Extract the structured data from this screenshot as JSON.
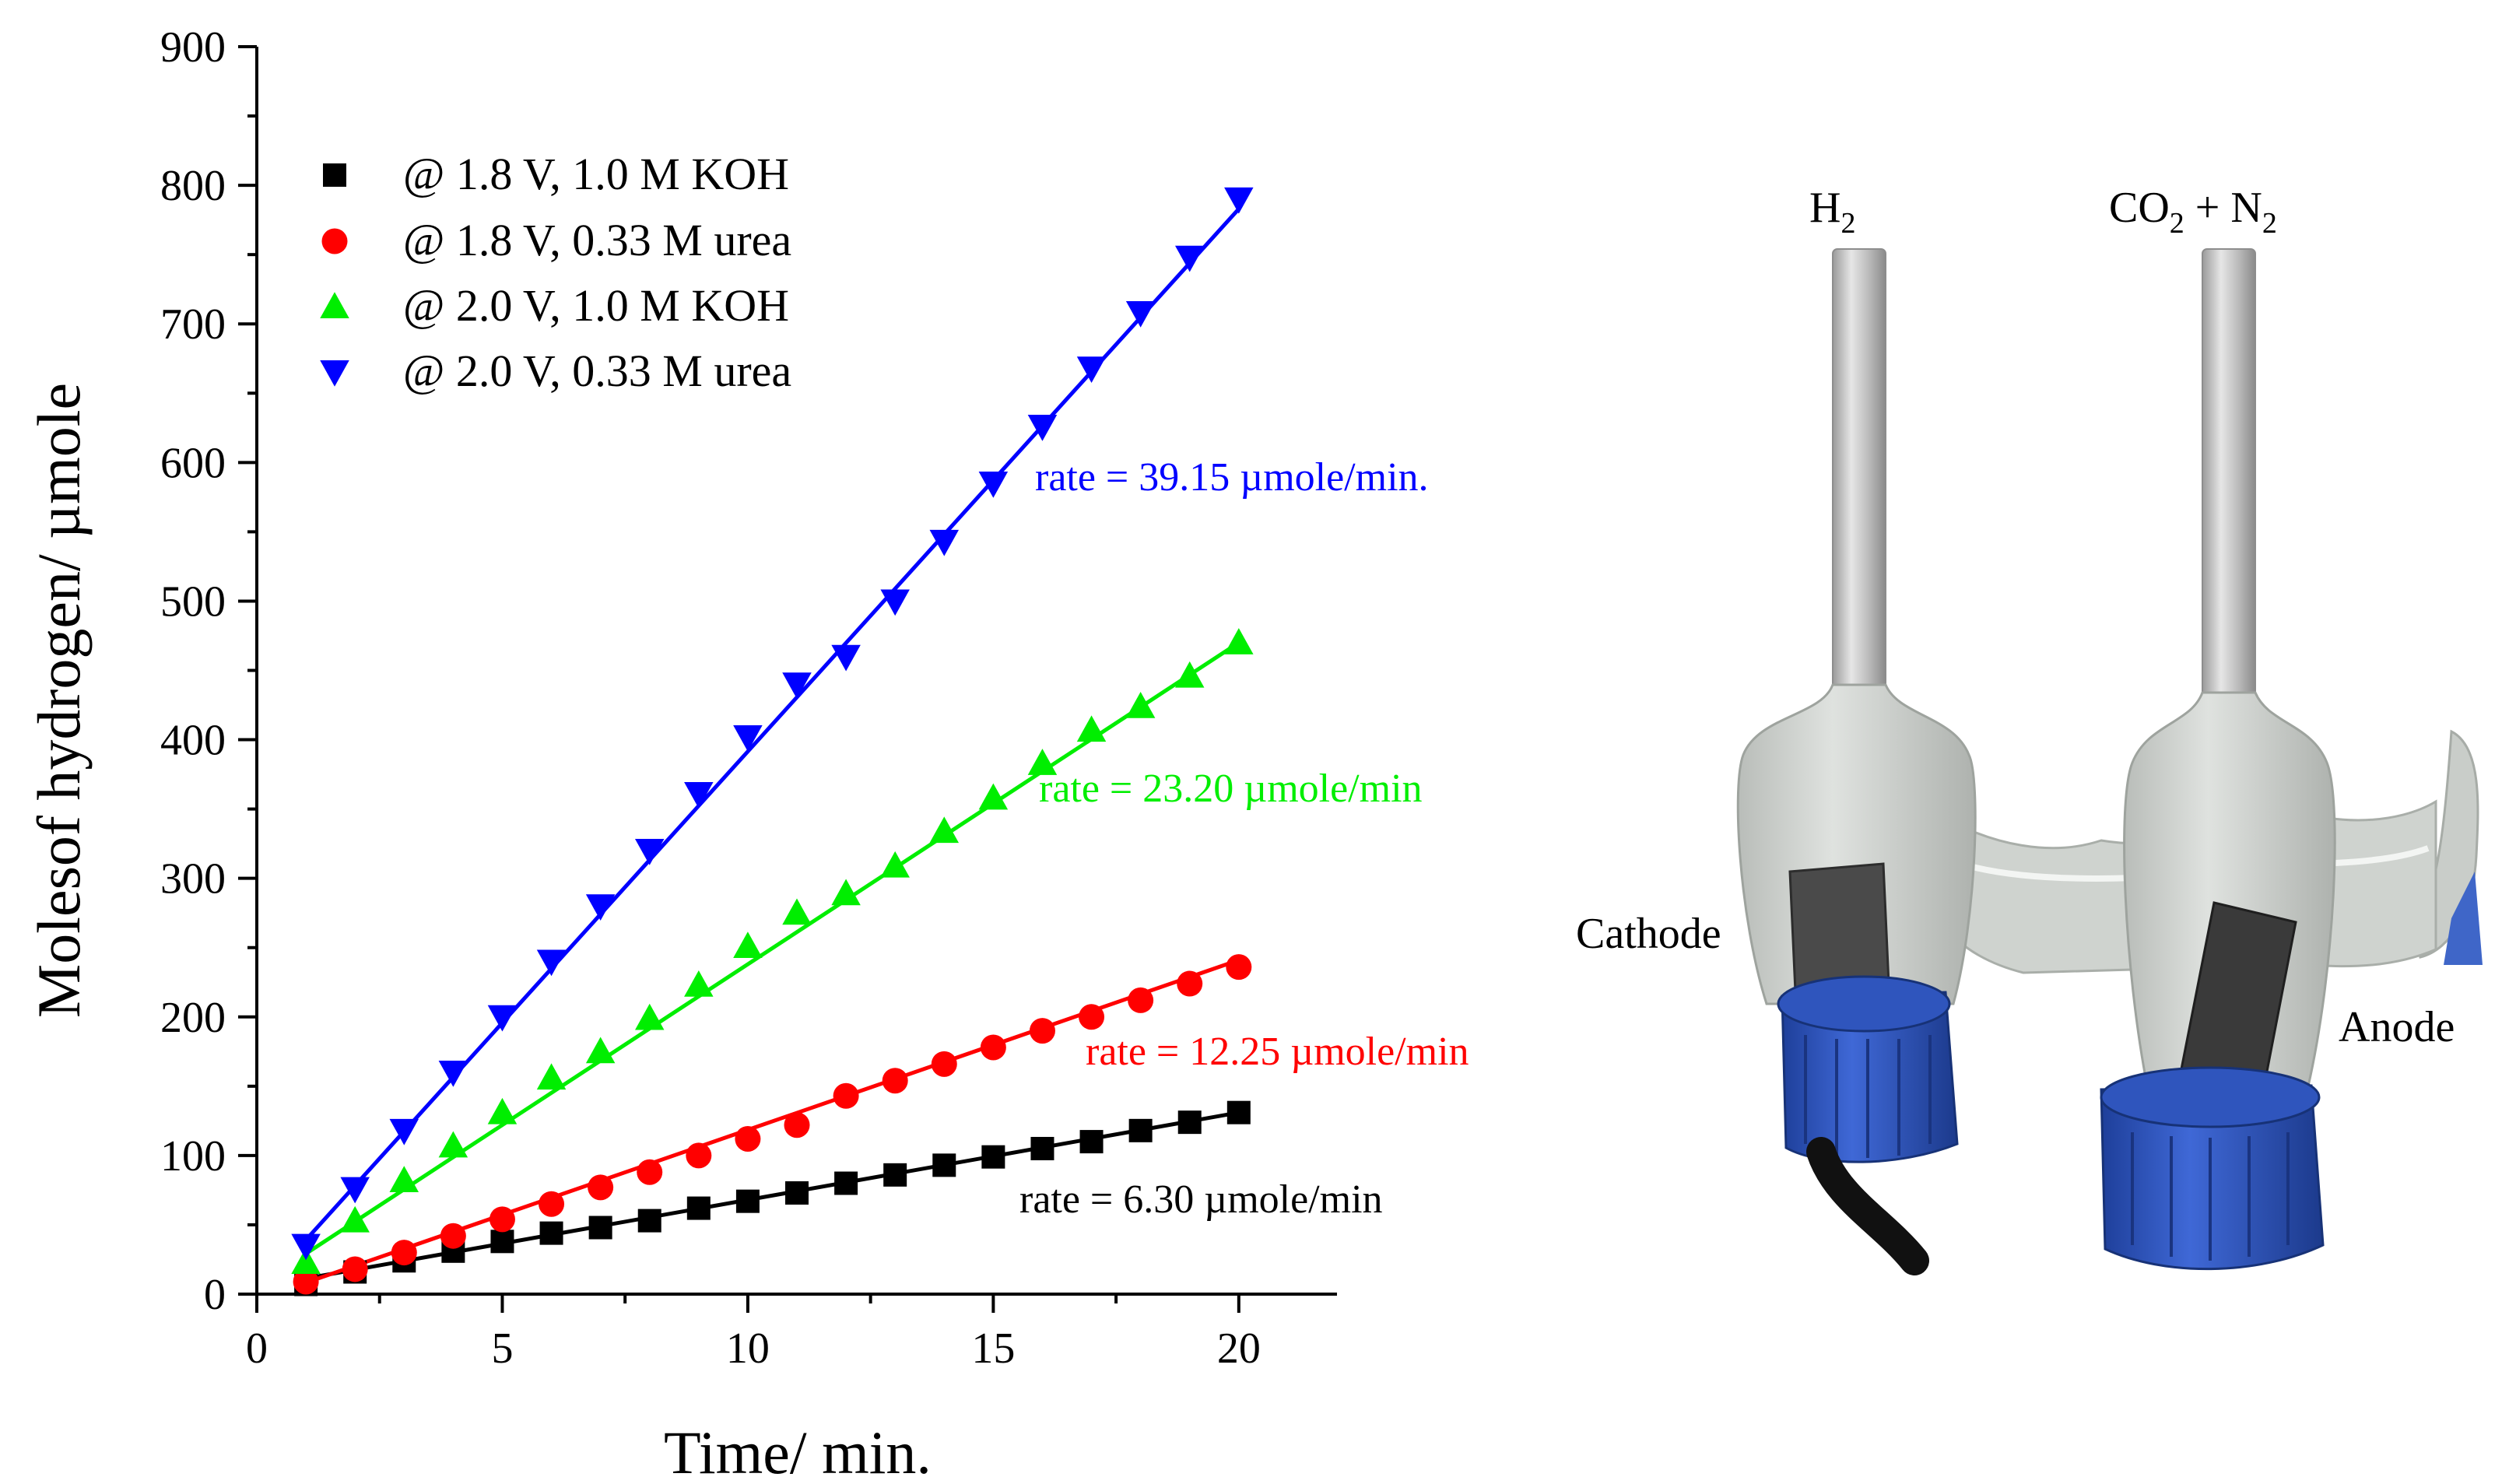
{
  "chart_data": {
    "type": "scatter",
    "xlabel": "Time/ min.",
    "ylabel": "Molesof hydrogen/ µmole",
    "xlim": [
      0,
      22
    ],
    "ylim": [
      0,
      900
    ],
    "xticks": [
      "0",
      "5",
      "10",
      "15",
      "20"
    ],
    "yticks": [
      "0",
      "100",
      "200",
      "300",
      "400",
      "500",
      "600",
      "700",
      "800",
      "900"
    ],
    "legend_position": "top-left",
    "x": [
      1,
      2,
      3,
      4,
      5,
      6,
      7,
      8,
      9,
      10,
      11,
      12,
      13,
      14,
      15,
      16,
      17,
      18,
      19,
      20
    ],
    "series": [
      {
        "name": "@ 1.8 V, 1.0 M KOH",
        "color": "#000000",
        "marker": "square",
        "values": [
          7,
          16,
          24,
          31,
          38,
          44,
          48,
          53,
          62,
          67,
          73,
          80,
          86,
          93,
          99,
          105,
          110,
          118,
          124,
          131
        ],
        "fit_slope": 6.3,
        "fit_intercept": 5,
        "rate_label": "rate = 6.30 µmole/min"
      },
      {
        "name": "@ 1.8 V, 0.33 M urea",
        "color": "#ff0000",
        "marker": "circle",
        "values": [
          9,
          18,
          30,
          42,
          54,
          65,
          77,
          88,
          100,
          112,
          122,
          143,
          154,
          166,
          178,
          190,
          200,
          212,
          224,
          236
        ],
        "fit_slope": 12.25,
        "fit_intercept": -4,
        "rate_label": "rate = 12.25 µmole/min"
      },
      {
        "name": "@ 2.0 V, 1.0 M KOH",
        "color": "#00ee00",
        "marker": "triangle-up",
        "values": [
          23,
          53,
          82,
          107,
          131,
          156,
          175,
          199,
          223,
          251,
          275,
          289,
          309,
          334,
          358,
          383,
          407,
          424,
          446,
          470
        ],
        "fit_slope": 23.2,
        "fit_intercept": 6,
        "rate_label": "rate = 23.20 µmole/min"
      },
      {
        "name": "@ 2.0 V, 0.33 M urea",
        "color": "#0000ff",
        "marker": "triangle-down",
        "values": [
          35,
          76,
          118,
          160,
          200,
          240,
          280,
          320,
          361,
          402,
          440,
          460,
          500,
          543,
          585,
          626,
          668,
          708,
          748,
          790
        ],
        "fit_slope": 39.15,
        "fit_intercept": 0,
        "rate_label": "rate = 39.15 µmole/min."
      }
    ]
  },
  "photo": {
    "label_h2_main": "H",
    "label_h2_sub": "2",
    "label_co2_a": "CO",
    "label_co2_sub1": "2",
    "label_co2_b": " + N",
    "label_co2_sub2": "2",
    "label_cathode": "Cathode",
    "label_anode": "Anode"
  }
}
